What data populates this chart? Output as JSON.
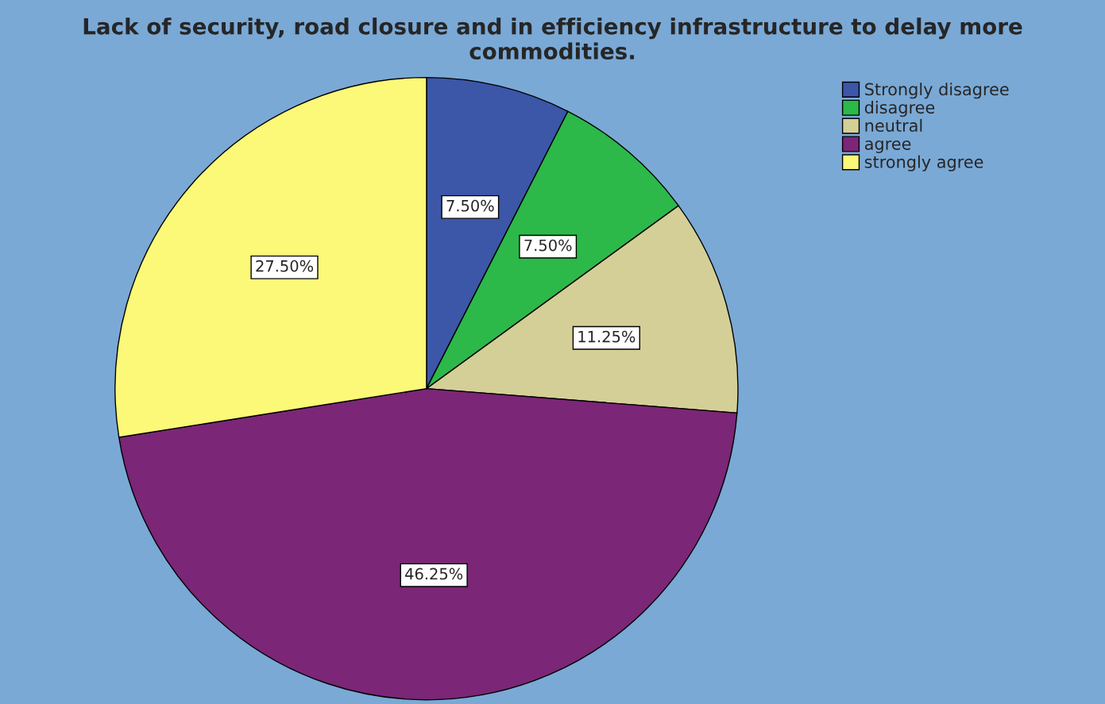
{
  "chart_data": {
    "type": "pie",
    "title": "Lack of security, road closure and in efficiency infrastructure to delay more commodities.",
    "categories": [
      "Strongly disagree",
      "disagree",
      "neutral",
      "agree",
      "strongly agree"
    ],
    "values": [
      7.5,
      7.5,
      11.25,
      46.25,
      27.5
    ],
    "colors": [
      "#3c56a8",
      "#2db84a",
      "#d4cf97",
      "#7b2677",
      "#fcf878"
    ],
    "value_labels": [
      "7.50%",
      "7.50%",
      "11.25%",
      "46.25%",
      "27.50%"
    ],
    "legend": "top right"
  }
}
